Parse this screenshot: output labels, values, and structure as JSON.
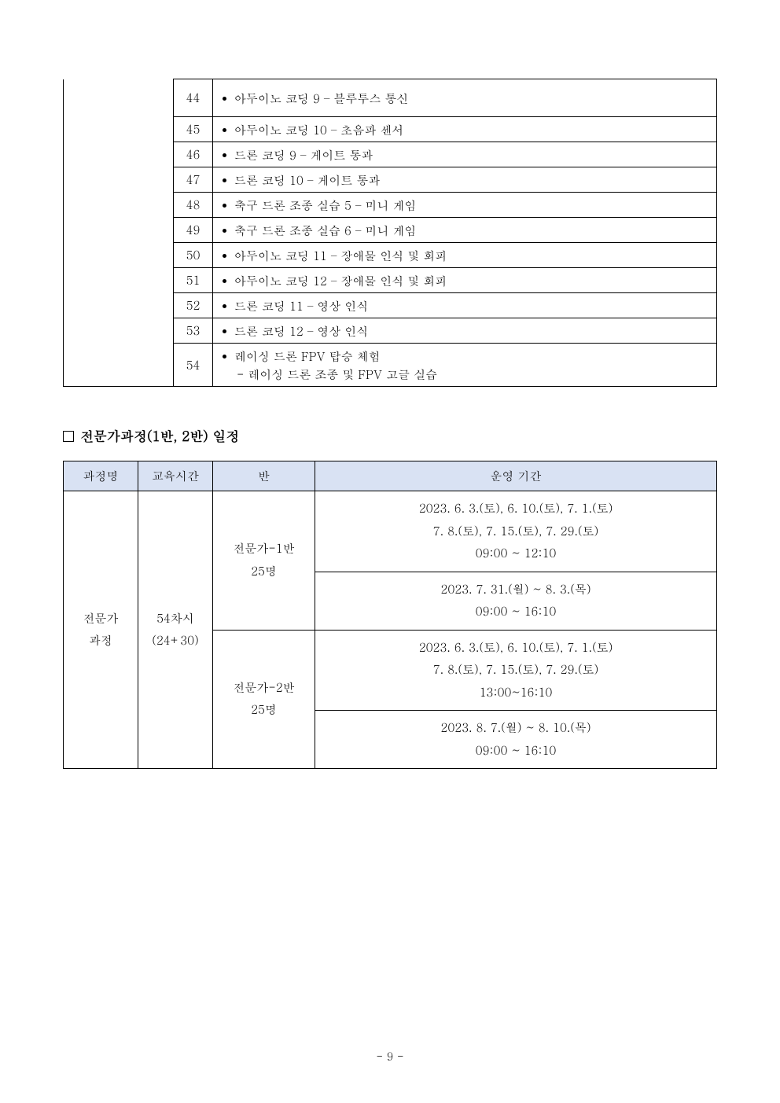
{
  "curriculum_rows": [
    {
      "num": "44",
      "content": "아두이노 코딩 9 – 블루투스 통신",
      "tall": true
    },
    {
      "num": "45",
      "content": "아두이노 코딩 10 – 초음파 센서"
    },
    {
      "num": "46",
      "content": "드론 코딩 9 – 게이트 통과"
    },
    {
      "num": "47",
      "content": "드론 코딩 10 – 게이트 통과"
    },
    {
      "num": "48",
      "content": "축구 드론 조종 실습 5 – 미니 게임"
    },
    {
      "num": "49",
      "content": "축구 드론 조종 실습 6 – 미니 게임"
    },
    {
      "num": "50",
      "content": "아두이노 코딩 11 – 장애물 인식 및 회피"
    },
    {
      "num": "51",
      "content": "아두이노 코딩 12 – 장애물 인식 및 회피"
    },
    {
      "num": "52",
      "content": "드론 코딩 11 – 영상 인식"
    },
    {
      "num": "53",
      "content": "드론 코딩 12 – 영상 인식"
    },
    {
      "num": "54",
      "content": "레이싱 드론 FPV 탑승 체험",
      "sub": "- 레이싱 드론 조종 및 FPV 고글 실습"
    }
  ],
  "section_title": "전문가과정(1반, 2반) 일정",
  "schedule_header": {
    "col1": "과정명",
    "col2": "교육시간",
    "col3": "반",
    "col4": "운영 기간"
  },
  "schedule_body": {
    "course_name_line1": "전문가",
    "course_name_line2": "과정",
    "hours_line1": "54차시",
    "hours_line2": "(24+30)",
    "class1_line1": "전문가-1반",
    "class1_line2": "25명",
    "class1_period1_line1": "2023. 6. 3.(토), 6. 10.(토), 7. 1.(토)",
    "class1_period1_line2": "7. 8.(토), 7. 15.(토), 7. 29.(토)",
    "class1_period1_line3": "09:00 ~ 12:10",
    "class1_period2_line1": "2023. 7. 31.(월) ~ 8. 3.(목)",
    "class1_period2_line2": "09:00 ~ 16:10",
    "class2_line1": "전문가-2반",
    "class2_line2": "25명",
    "class2_period1_line1": "2023. 6. 3.(토), 6. 10.(토), 7. 1.(토)",
    "class2_period1_line2": "7. 8.(토), 7. 15.(토), 7. 29.(토)",
    "class2_period1_line3": "13:00~16:10",
    "class2_period2_line1": "2023. 8. 7.(월) ~ 8. 10.(목)",
    "class2_period2_line2": "09:00 ~ 16:10"
  },
  "page_number": "- 9 -",
  "colors": {
    "header_bg": "#d9e2f3",
    "border": "#000000",
    "text": "#000000",
    "bg": "#ffffff"
  }
}
